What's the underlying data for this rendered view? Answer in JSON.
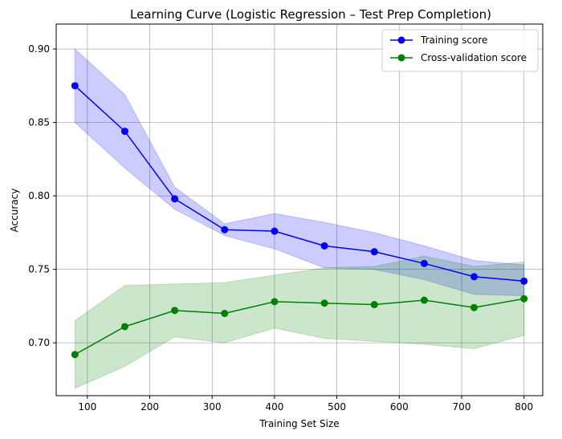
{
  "chart_data": {
    "type": "line",
    "title": "Learning Curve (Logistic Regression – Test Prep Completion)",
    "xlabel": "Training Set Size",
    "ylabel": "Accuracy",
    "xlim": [
      50,
      830
    ],
    "ylim": [
      0.664,
      0.917
    ],
    "xticks": [
      100,
      200,
      300,
      400,
      500,
      600,
      700,
      800
    ],
    "yticks": [
      0.7,
      0.75,
      0.8,
      0.85,
      0.9
    ],
    "xtick_labels": [
      "100",
      "200",
      "300",
      "400",
      "500",
      "600",
      "700",
      "800"
    ],
    "ytick_labels": [
      "0.70",
      "0.75",
      "0.80",
      "0.85",
      "0.90"
    ],
    "grid": true,
    "legend_position": "top-right",
    "x": [
      80,
      160,
      240,
      320,
      400,
      480,
      560,
      640,
      720,
      800
    ],
    "series": [
      {
        "name": "Training score",
        "color": "#0000ff",
        "band_color": "#0000ff",
        "values": [
          0.875,
          0.844,
          0.798,
          0.777,
          0.776,
          0.766,
          0.762,
          0.754,
          0.745,
          0.742
        ],
        "upper": [
          0.9,
          0.869,
          0.806,
          0.781,
          0.788,
          0.782,
          0.775,
          0.766,
          0.756,
          0.753
        ],
        "lower": [
          0.85,
          0.819,
          0.791,
          0.773,
          0.764,
          0.751,
          0.75,
          0.743,
          0.733,
          0.732
        ]
      },
      {
        "name": "Cross-validation score",
        "color": "#008000",
        "band_color": "#008000",
        "values": [
          0.692,
          0.711,
          0.722,
          0.72,
          0.728,
          0.727,
          0.726,
          0.729,
          0.724,
          0.73
        ],
        "upper": [
          0.715,
          0.739,
          0.74,
          0.741,
          0.746,
          0.751,
          0.752,
          0.759,
          0.752,
          0.755
        ],
        "lower": [
          0.669,
          0.684,
          0.704,
          0.7,
          0.71,
          0.703,
          0.701,
          0.699,
          0.696,
          0.705
        ]
      }
    ]
  }
}
